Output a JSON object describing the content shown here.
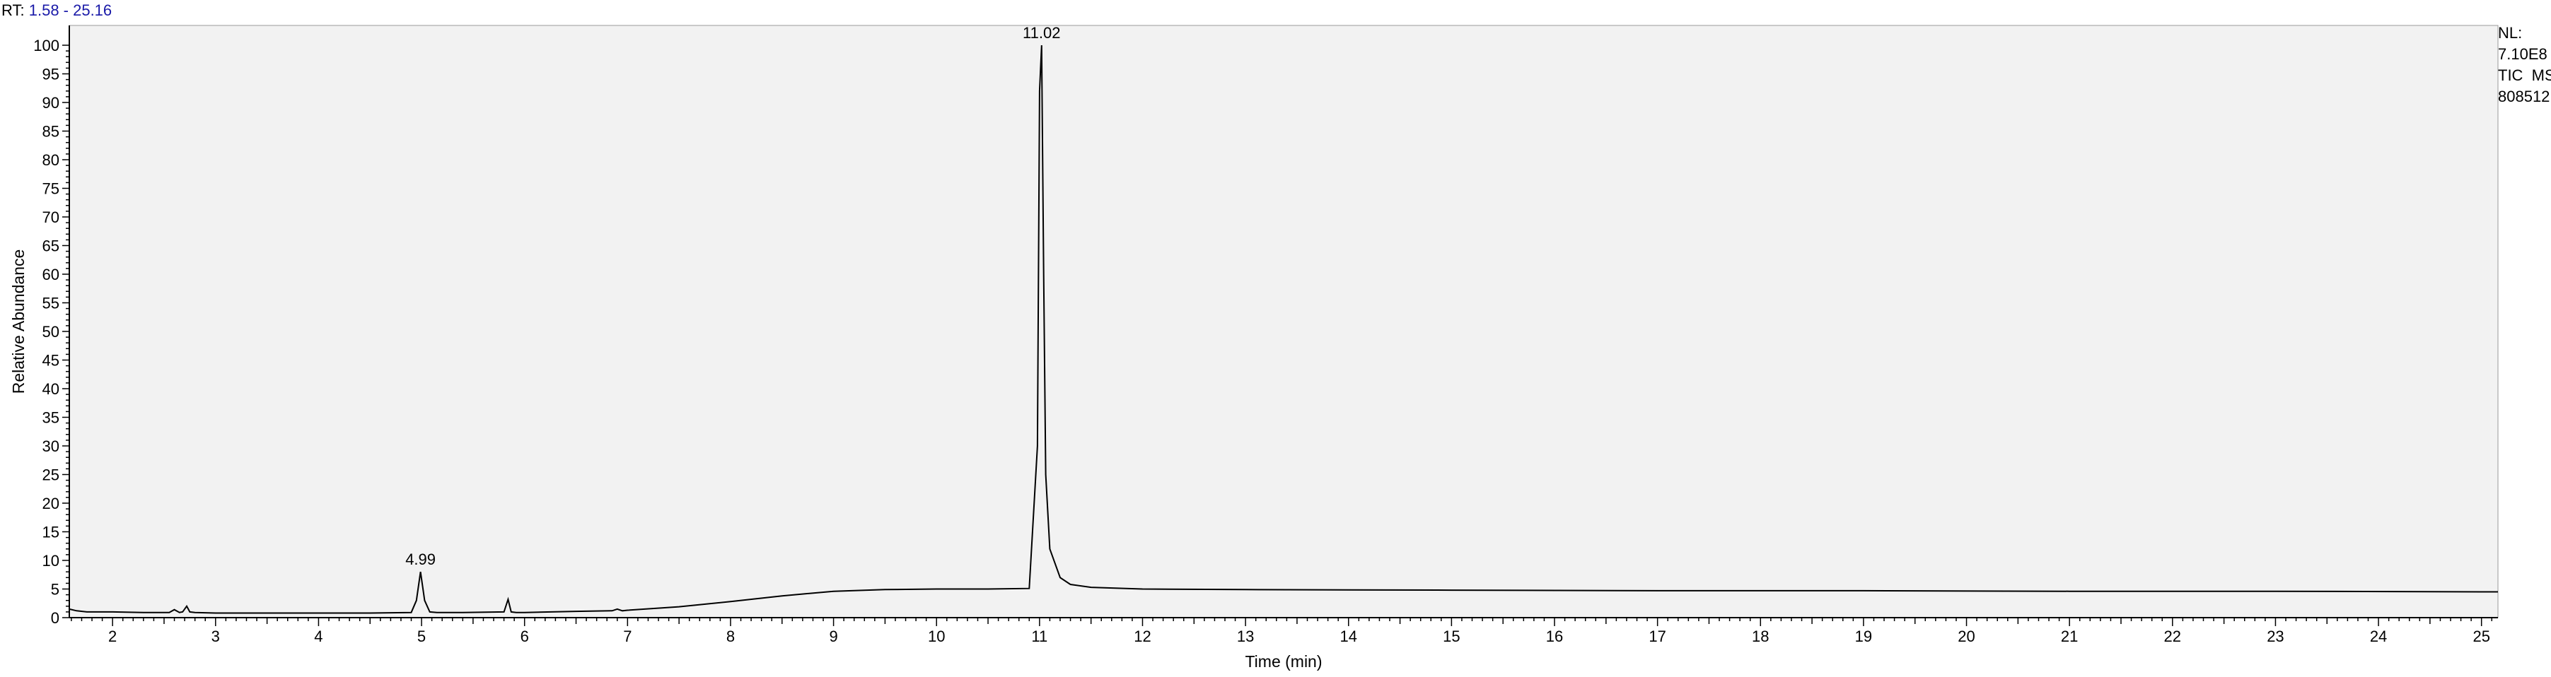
{
  "header": {
    "rt_label": "RT:",
    "rt_range": "1.58 - 25.16"
  },
  "meta": {
    "nl_label": "NL:",
    "nl_value": "7.10E8",
    "scan_filter": "TIC  MS",
    "file_id": "808512"
  },
  "colors": {
    "plot_background": "#f2f2f2",
    "trace": "#000000",
    "rt_range_text": "#1a1aa8"
  },
  "chart_data": {
    "type": "line",
    "title": "",
    "xlabel": "Time (min)",
    "ylabel": "Relative Abundance",
    "xlim": [
      1.58,
      25.16
    ],
    "ylim": [
      0,
      100
    ],
    "x_ticks": [
      2,
      3,
      4,
      5,
      6,
      7,
      8,
      9,
      10,
      11,
      12,
      13,
      14,
      15,
      16,
      17,
      18,
      19,
      20,
      21,
      22,
      23,
      24,
      25
    ],
    "y_ticks": [
      0,
      5,
      10,
      15,
      20,
      25,
      30,
      35,
      40,
      45,
      50,
      55,
      60,
      65,
      70,
      75,
      80,
      85,
      90,
      95,
      100
    ],
    "grid": false,
    "legend": "none",
    "peak_labels": [
      {
        "x": 4.99,
        "y": 8,
        "label": "4.99"
      },
      {
        "x": 11.02,
        "y": 100,
        "label": "11.02"
      }
    ],
    "series": [
      {
        "x": [
          1.58,
          1.65,
          1.75,
          2.0,
          2.3,
          2.55,
          2.6,
          2.65,
          2.68,
          2.72,
          2.75,
          2.8,
          3.0,
          3.5,
          4.0,
          4.5,
          4.9,
          4.95,
          4.99,
          5.03,
          5.08,
          5.15,
          5.4,
          5.8,
          5.84,
          5.87,
          5.92,
          6.0,
          6.5,
          6.85,
          6.9,
          6.95,
          7.0,
          7.5,
          8.0,
          8.5,
          9.0,
          9.5,
          10.0,
          10.5,
          10.9,
          10.98,
          11.0,
          11.02,
          11.04,
          11.06,
          11.1,
          11.2,
          11.3,
          11.5,
          12.0,
          13.0,
          15.0,
          17.0,
          19.0,
          21.0,
          23.0,
          25.0,
          25.16
        ],
        "y": [
          1.5,
          1.2,
          1.0,
          1.0,
          0.9,
          0.9,
          1.4,
          0.9,
          1.0,
          2.0,
          1.0,
          0.9,
          0.8,
          0.8,
          0.8,
          0.8,
          0.9,
          3.0,
          8.0,
          3.0,
          1.0,
          0.9,
          0.9,
          1.0,
          3.2,
          1.0,
          0.9,
          0.9,
          1.1,
          1.2,
          1.5,
          1.2,
          1.3,
          1.9,
          2.8,
          3.8,
          4.6,
          4.9,
          5.0,
          5.0,
          5.1,
          30.0,
          92.0,
          100.0,
          60.0,
          25.0,
          12.0,
          7.0,
          5.8,
          5.3,
          5.0,
          4.9,
          4.8,
          4.7,
          4.7,
          4.6,
          4.6,
          4.5,
          4.5
        ]
      }
    ]
  }
}
